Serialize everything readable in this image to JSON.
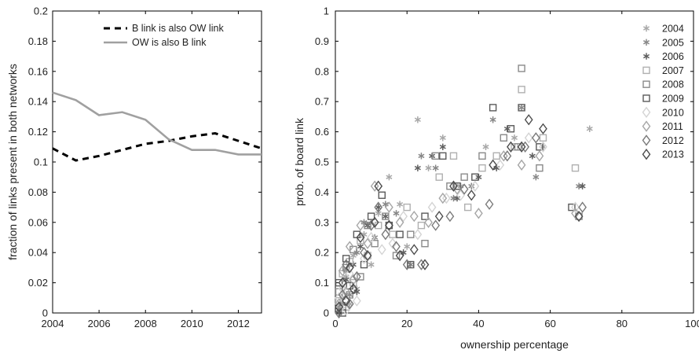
{
  "colors": {
    "axis": "#000000",
    "line_b": "#000000",
    "line_ow": "#a0a0a0"
  },
  "chart_data": [
    {
      "type": "line",
      "title": "",
      "xlabel": "",
      "ylabel": "fraction of links present in both networks",
      "xlim": [
        2004,
        2013
      ],
      "ylim": [
        0,
        0.2
      ],
      "xticks": [
        2004,
        2006,
        2008,
        2010,
        2012
      ],
      "yticks": [
        0,
        0.02,
        0.04,
        0.06,
        0.08,
        0.1,
        0.12,
        0.14,
        0.16,
        0.18,
        0.2
      ],
      "ytick_labels": [
        "0",
        "0.02",
        "0.04",
        "0.06",
        "0.08",
        "0.1",
        "0.12",
        "0.14",
        "0.16",
        "0.18",
        "0.2"
      ],
      "grid": false,
      "legend_position": "top-right",
      "x": [
        2004,
        2005,
        2006,
        2007,
        2008,
        2009,
        2010,
        2011,
        2012,
        2013
      ],
      "series": [
        {
          "name": "B link is also OW link",
          "style": "dashed",
          "color": "#000000",
          "values": [
            0.109,
            0.101,
            0.104,
            0.108,
            0.112,
            0.114,
            0.117,
            0.119,
            0.114,
            0.109
          ]
        },
        {
          "name": "OW is also B link",
          "style": "solid",
          "color": "#a0a0a0",
          "values": [
            0.146,
            0.141,
            0.131,
            0.133,
            0.128,
            0.115,
            0.108,
            0.108,
            0.105,
            0.105
          ]
        }
      ]
    },
    {
      "type": "scatter",
      "title": "",
      "xlabel": "ownership percentage",
      "ylabel": "prob. of board link",
      "xlim": [
        0,
        100
      ],
      "ylim": [
        0,
        1
      ],
      "xticks": [
        0,
        20,
        40,
        60,
        80,
        100
      ],
      "yticks": [
        0,
        0.1,
        0.2,
        0.3,
        0.4,
        0.5,
        0.6,
        0.7,
        0.8,
        0.9,
        1
      ],
      "ytick_labels": [
        "0",
        "0.1",
        "0.2",
        "0.3",
        "0.4",
        "0.5",
        "0.6",
        "0.7",
        "0.8",
        "0.9",
        "1"
      ],
      "grid": false,
      "legend_position": "top-right",
      "series": [
        {
          "name": "2004",
          "marker": "asterisk",
          "color": "#a8a8a8",
          "points": [
            [
              1,
              0.01
            ],
            [
              2,
              0.05
            ],
            [
              3,
              0.12
            ],
            [
              4,
              0.03
            ],
            [
              5,
              0.19
            ],
            [
              6,
              0.08
            ],
            [
              8,
              0.26
            ],
            [
              10,
              0.16
            ],
            [
              12,
              0.33
            ],
            [
              15,
              0.45
            ],
            [
              18,
              0.36
            ],
            [
              20,
              0.22
            ],
            [
              23,
              0.64
            ],
            [
              26,
              0.48
            ],
            [
              30,
              0.58
            ],
            [
              35,
              0.42
            ],
            [
              42,
              0.55
            ],
            [
              50,
              0.58
            ],
            [
              58,
              0.55
            ],
            [
              71,
              0.61
            ]
          ]
        },
        {
          "name": "2005",
          "marker": "asterisk",
          "color": "#888888",
          "points": [
            [
              1,
              0.02
            ],
            [
              2,
              0.09
            ],
            [
              3,
              0.14
            ],
            [
              4,
              0.06
            ],
            [
              6,
              0.2
            ],
            [
              8,
              0.3
            ],
            [
              11,
              0.25
            ],
            [
              14,
              0.36
            ],
            [
              17,
              0.33
            ],
            [
              21,
              0.16
            ],
            [
              24,
              0.52
            ],
            [
              28,
              0.48
            ],
            [
              33,
              0.38
            ],
            [
              38,
              0.42
            ],
            [
              44,
              0.64
            ],
            [
              52,
              0.68
            ],
            [
              56,
              0.45
            ],
            [
              68,
              0.42
            ]
          ]
        },
        {
          "name": "2006",
          "marker": "asterisk",
          "color": "#606060",
          "points": [
            [
              1,
              0.0
            ],
            [
              2,
              0.03
            ],
            [
              3,
              0.11
            ],
            [
              5,
              0.16
            ],
            [
              6,
              0.07
            ],
            [
              7,
              0.22
            ],
            [
              9,
              0.29
            ],
            [
              12,
              0.35
            ],
            [
              14,
              0.32
            ],
            [
              19,
              0.2
            ],
            [
              23,
              0.48
            ],
            [
              27,
              0.52
            ],
            [
              30,
              0.55
            ],
            [
              34,
              0.38
            ],
            [
              40,
              0.45
            ],
            [
              45,
              0.48
            ],
            [
              48,
              0.61
            ],
            [
              55,
              0.52
            ],
            [
              69,
              0.42
            ]
          ]
        },
        {
          "name": "2007",
          "marker": "square",
          "color": "#b0b0b0",
          "points": [
            [
              1,
              0.04
            ],
            [
              2,
              0.13
            ],
            [
              3,
              0.02
            ],
            [
              4,
              0.17
            ],
            [
              5,
              0.1
            ],
            [
              7,
              0.24
            ],
            [
              9,
              0.19
            ],
            [
              12,
              0.29
            ],
            [
              16,
              0.26
            ],
            [
              20,
              0.35
            ],
            [
              24,
              0.29
            ],
            [
              29,
              0.45
            ],
            [
              33,
              0.52
            ],
            [
              37,
              0.35
            ],
            [
              41,
              0.48
            ],
            [
              45,
              0.52
            ],
            [
              50,
              0.55
            ],
            [
              52,
              0.74
            ],
            [
              58,
              0.58
            ],
            [
              67,
              0.48
            ]
          ]
        },
        {
          "name": "2008",
          "marker": "square",
          "color": "#8a8a8a",
          "points": [
            [
              1,
              0.07
            ],
            [
              2,
              0.02
            ],
            [
              3,
              0.15
            ],
            [
              4,
              0.06
            ],
            [
              5,
              0.21
            ],
            [
              7,
              0.12
            ],
            [
              9,
              0.29
            ],
            [
              11,
              0.23
            ],
            [
              14,
              0.32
            ],
            [
              17,
              0.19
            ],
            [
              21,
              0.26
            ],
            [
              25,
              0.23
            ],
            [
              28,
              0.52
            ],
            [
              32,
              0.42
            ],
            [
              36,
              0.45
            ],
            [
              41,
              0.52
            ],
            [
              47,
              0.58
            ],
            [
              51,
              0.55
            ],
            [
              52,
              0.81
            ],
            [
              57,
              0.48
            ],
            [
              68,
              0.32
            ]
          ]
        },
        {
          "name": "2009",
          "marker": "square",
          "color": "#5a5a5a",
          "points": [
            [
              1,
              0.1
            ],
            [
              2,
              0.0
            ],
            [
              3,
              0.18
            ],
            [
              4,
              0.09
            ],
            [
              6,
              0.26
            ],
            [
              8,
              0.16
            ],
            [
              10,
              0.32
            ],
            [
              13,
              0.39
            ],
            [
              15,
              0.29
            ],
            [
              18,
              0.26
            ],
            [
              21,
              0.16
            ],
            [
              25,
              0.32
            ],
            [
              30,
              0.52
            ],
            [
              34,
              0.42
            ],
            [
              39,
              0.45
            ],
            [
              44,
              0.68
            ],
            [
              49,
              0.61
            ],
            [
              52,
              0.68
            ],
            [
              57,
              0.55
            ],
            [
              66,
              0.35
            ]
          ]
        },
        {
          "name": "2010",
          "marker": "diamond",
          "color": "#d4d4d4",
          "points": [
            [
              1,
              0.05
            ],
            [
              2,
              0.08
            ],
            [
              3,
              0.01
            ],
            [
              4,
              0.13
            ],
            [
              6,
              0.04
            ],
            [
              8,
              0.18
            ],
            [
              10,
              0.25
            ],
            [
              13,
              0.21
            ],
            [
              16,
              0.23
            ],
            [
              19,
              0.32
            ],
            [
              23,
              0.26
            ],
            [
              27,
              0.35
            ],
            [
              31,
              0.38
            ],
            [
              35,
              0.39
            ],
            [
              39,
              0.42
            ],
            [
              46,
              0.49
            ],
            [
              54,
              0.58
            ],
            [
              58,
              0.55
            ],
            [
              67,
              0.35
            ]
          ]
        },
        {
          "name": "2011",
          "marker": "diamond",
          "color": "#a6a6a6",
          "points": [
            [
              1,
              0.03
            ],
            [
              2,
              0.14
            ],
            [
              3,
              0.07
            ],
            [
              4,
              0.22
            ],
            [
              5,
              0.11
            ],
            [
              7,
              0.29
            ],
            [
              9,
              0.23
            ],
            [
              11,
              0.42
            ],
            [
              15,
              0.35
            ],
            [
              18,
              0.3
            ],
            [
              22,
              0.32
            ],
            [
              26,
              0.3
            ],
            [
              30,
              0.38
            ],
            [
              34,
              0.41
            ],
            [
              40,
              0.33
            ],
            [
              47,
              0.52
            ],
            [
              52,
              0.49
            ],
            [
              57,
              0.52
            ],
            [
              67,
              0.33
            ]
          ]
        },
        {
          "name": "2012",
          "marker": "diamond",
          "color": "#7a7a7a",
          "points": [
            [
              1,
              0.0
            ],
            [
              2,
              0.06
            ],
            [
              3,
              0.16
            ],
            [
              4,
              0.03
            ],
            [
              6,
              0.12
            ],
            [
              8,
              0.2
            ],
            [
              10,
              0.29
            ],
            [
              12,
              0.35
            ],
            [
              14,
              0.26
            ],
            [
              17,
              0.22
            ],
            [
              20,
              0.16
            ],
            [
              24,
              0.16
            ],
            [
              28,
              0.29
            ],
            [
              32,
              0.32
            ],
            [
              36,
              0.41
            ],
            [
              43,
              0.36
            ],
            [
              48,
              0.52
            ],
            [
              53,
              0.55
            ],
            [
              56,
              0.58
            ],
            [
              69,
              0.35
            ]
          ]
        },
        {
          "name": "2013",
          "marker": "diamond",
          "color": "#4c4c4c",
          "points": [
            [
              1,
              0.02
            ],
            [
              2,
              0.1
            ],
            [
              3,
              0.04
            ],
            [
              4,
              0.15
            ],
            [
              5,
              0.08
            ],
            [
              7,
              0.25
            ],
            [
              9,
              0.19
            ],
            [
              11,
              0.3
            ],
            [
              12,
              0.42
            ],
            [
              15,
              0.29
            ],
            [
              18,
              0.19
            ],
            [
              22,
              0.21
            ],
            [
              25,
              0.16
            ],
            [
              29,
              0.32
            ],
            [
              33,
              0.42
            ],
            [
              38,
              0.39
            ],
            [
              44,
              0.49
            ],
            [
              49,
              0.55
            ],
            [
              52,
              0.55
            ],
            [
              54,
              0.64
            ],
            [
              58,
              0.61
            ],
            [
              68,
              0.32
            ]
          ]
        }
      ]
    }
  ]
}
